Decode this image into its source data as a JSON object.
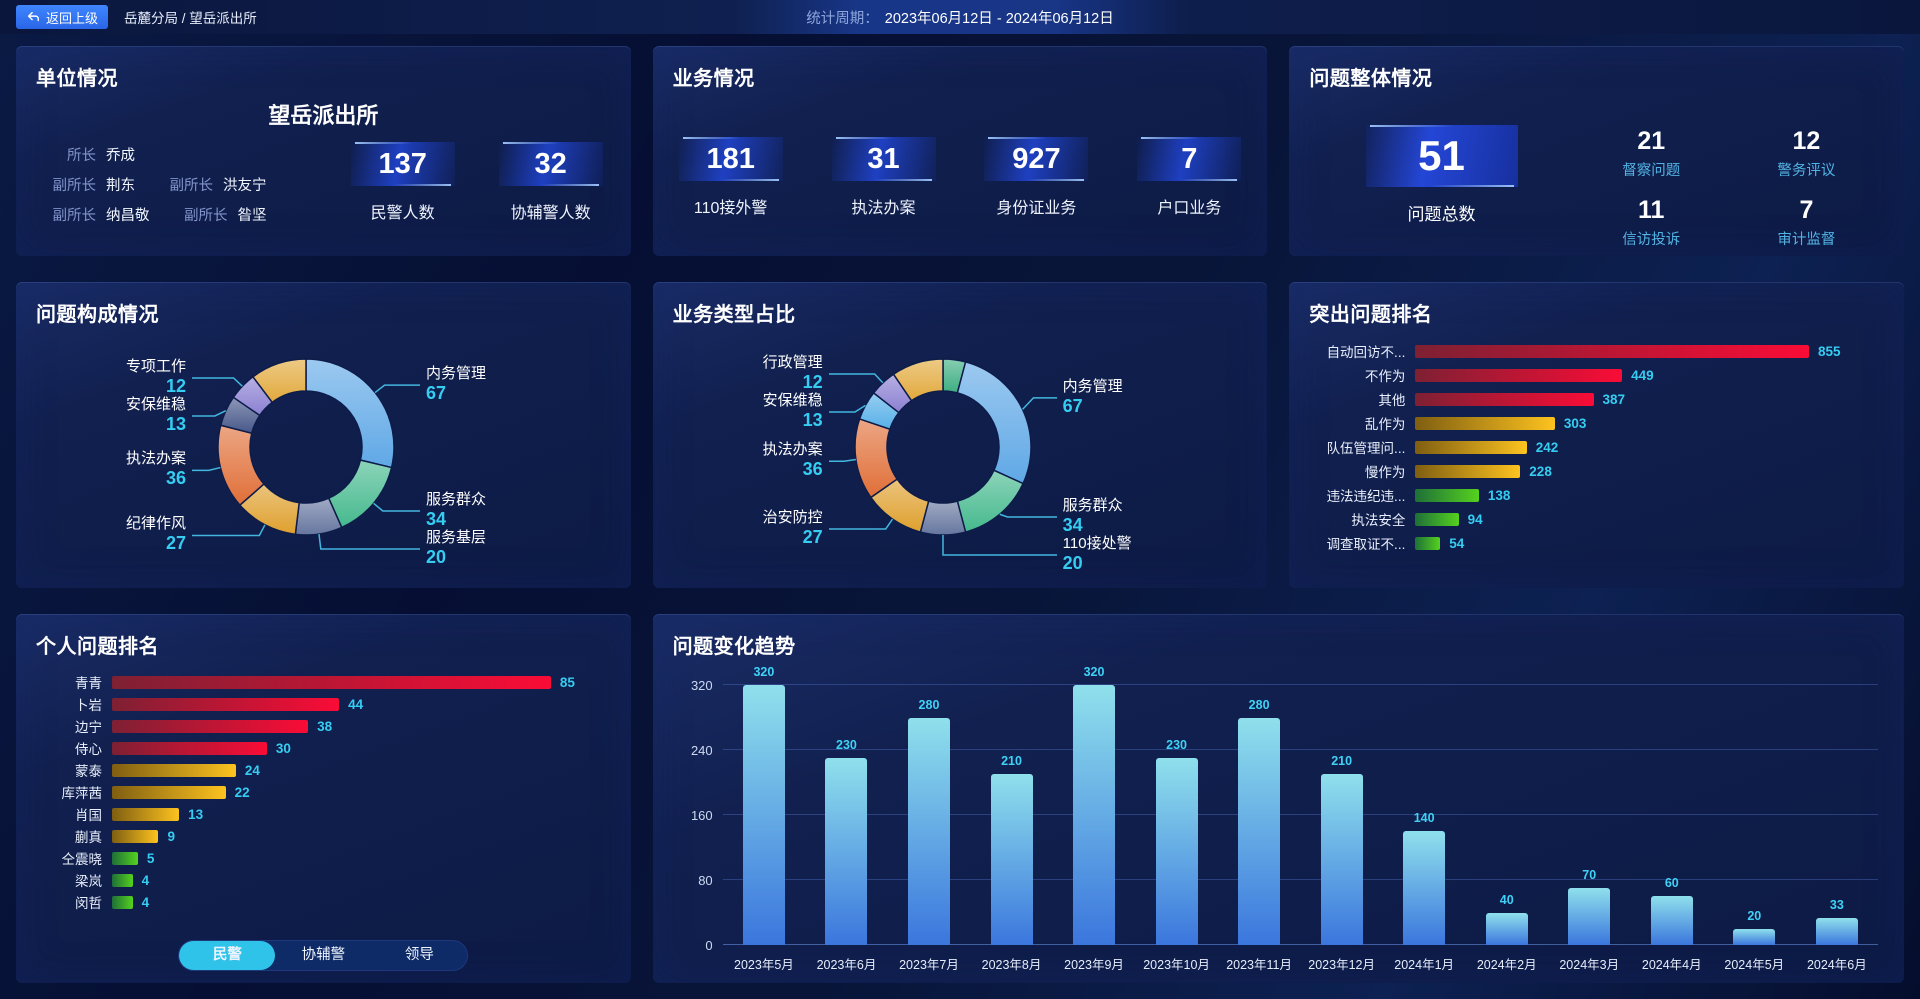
{
  "topbar": {
    "back_button": "返回上级",
    "breadcrumb": "岳麓分局 / 望岳派出所",
    "period_label": "统计周期：",
    "period_value": "2023年06月12日 - 2024年06月12日"
  },
  "panels": {
    "unit": {
      "title": "单位情况",
      "station_name": "望岳派出所",
      "roster_rows": [
        [
          {
            "role": "所长",
            "name": "乔成"
          }
        ],
        [
          {
            "role": "副所长",
            "name": "荆东"
          },
          {
            "role": "副所长",
            "name": "洪友宁"
          }
        ],
        [
          {
            "role": "副所长",
            "name": "纳昌敬"
          },
          {
            "role": "副所长",
            "name": "昝坚"
          }
        ]
      ],
      "stats": [
        {
          "value": "137",
          "label": "民警人数"
        },
        {
          "value": "32",
          "label": "协辅警人数"
        }
      ]
    },
    "business": {
      "title": "业务情况",
      "stats": [
        {
          "value": "181",
          "label": "110接外警"
        },
        {
          "value": "31",
          "label": "执法办案"
        },
        {
          "value": "927",
          "label": "身份证业务"
        },
        {
          "value": "7",
          "label": "户口业务"
        }
      ]
    },
    "problem_overview": {
      "title": "问题整体情况",
      "total": {
        "value": "51",
        "label": "问题总数"
      },
      "stats": [
        {
          "value": "21",
          "label": "督察问题"
        },
        {
          "value": "12",
          "label": "警务评议"
        },
        {
          "value": "11",
          "label": "信访投诉"
        },
        {
          "value": "7",
          "label": "审计监督"
        }
      ]
    }
  },
  "colors": {
    "value_cyan": "#35cdf2",
    "leader_line": "#49c8ee",
    "red_bar": [
      "#7e2033",
      "#fa0c36"
    ],
    "gold_bar": [
      "#7f5e11",
      "#fdc31f"
    ],
    "green_bar": [
      "#1e6f38",
      "#55d21e"
    ],
    "trend_bar": [
      "#8fe0ec",
      "#3b76dd"
    ]
  },
  "chart_data": [
    {
      "id": "problem_composition",
      "type": "donut",
      "title": "问题构成情况",
      "segments": [
        {
          "label": "内务管理",
          "value": 67,
          "color": "#5fa8e6"
        },
        {
          "label": "服务群众",
          "value": 34,
          "color": "#45b98e"
        },
        {
          "label": "服务基层",
          "value": 20,
          "color": "#66769f"
        },
        {
          "label": "纪律作风",
          "value": 27,
          "color": "#dfa02e"
        },
        {
          "label": "执法办案",
          "value": 36,
          "color": "#e06f38"
        },
        {
          "label": "安保维稳",
          "value": 13,
          "color": "#47588a"
        },
        {
          "label": "专项工作",
          "value": 12,
          "color": "#8b80d2"
        },
        {
          "label": "",
          "value": 24,
          "color": "#e2a93c"
        }
      ]
    },
    {
      "id": "business_share",
      "type": "donut",
      "title": "业务类型占比",
      "segments": [
        {
          "label": "",
          "value": 10,
          "color": "#3dae82"
        },
        {
          "label": "内务管理",
          "value": 67,
          "color": "#5fa8e6"
        },
        {
          "label": "服务群众",
          "value": 34,
          "color": "#45b98e"
        },
        {
          "label": "110接处警",
          "value": 20,
          "color": "#66769f"
        },
        {
          "label": "治安防控",
          "value": 27,
          "color": "#dfa02e"
        },
        {
          "label": "执法办案",
          "value": 36,
          "color": "#e06f38"
        },
        {
          "label": "安保维稳",
          "value": 13,
          "color": "#57b0e8"
        },
        {
          "label": "行政管理",
          "value": 12,
          "color": "#8b80d2"
        },
        {
          "label": "",
          "value": 23,
          "color": "#e2a93c"
        }
      ]
    },
    {
      "id": "top_issues",
      "type": "hbar",
      "title": "突出问题排名",
      "rows": [
        {
          "label": "自动回访不...",
          "value": 855,
          "color": "red"
        },
        {
          "label": "不作为",
          "value": 449,
          "color": "red"
        },
        {
          "label": "其他",
          "value": 387,
          "color": "red"
        },
        {
          "label": "乱作为",
          "value": 303,
          "color": "gold"
        },
        {
          "label": "队伍管理问...",
          "value": 242,
          "color": "gold"
        },
        {
          "label": "慢作为",
          "value": 228,
          "color": "gold"
        },
        {
          "label": "违法违纪违...",
          "value": 138,
          "color": "green"
        },
        {
          "label": "执法安全",
          "value": 94,
          "color": "green"
        },
        {
          "label": "调查取证不...",
          "value": 54,
          "color": "green"
        }
      ]
    },
    {
      "id": "personal_ranking",
      "type": "hbar",
      "title": "个人问题排名",
      "rows": [
        {
          "label": "青青",
          "value": 85,
          "color": "red"
        },
        {
          "label": "卜岩",
          "value": 44,
          "color": "red"
        },
        {
          "label": "边宁",
          "value": 38,
          "color": "red"
        },
        {
          "label": "侍心",
          "value": 30,
          "color": "red"
        },
        {
          "label": "蒙泰",
          "value": 24,
          "color": "gold"
        },
        {
          "label": "库萍茜",
          "value": 22,
          "color": "gold"
        },
        {
          "label": "肖国",
          "value": 13,
          "color": "gold"
        },
        {
          "label": "蒯真",
          "value": 9,
          "color": "gold"
        },
        {
          "label": "仝震晓",
          "value": 5,
          "color": "green"
        },
        {
          "label": "梁岚",
          "value": 4,
          "color": "green"
        },
        {
          "label": "闵哲",
          "value": 4,
          "color": "green"
        }
      ],
      "tabs": [
        "民警",
        "协辅警",
        "领导"
      ],
      "active_tab": "民警"
    },
    {
      "id": "trend",
      "type": "bar",
      "title": "问题变化趋势",
      "categories": [
        "2023年5月",
        "2023年6月",
        "2023年7月",
        "2023年8月",
        "2023年9月",
        "2023年10月",
        "2023年11月",
        "2023年12月",
        "2024年1月",
        "2024年2月",
        "2024年3月",
        "2024年4月",
        "2024年5月",
        "2024年6月"
      ],
      "values": [
        320,
        230,
        280,
        210,
        320,
        230,
        280,
        210,
        140,
        40,
        70,
        60,
        20,
        33
      ],
      "xlabel": "",
      "ylabel": "",
      "yticks": [
        0,
        80,
        160,
        240,
        320
      ],
      "ylim": [
        0,
        330
      ],
      "grid": true,
      "legend": "none"
    }
  ]
}
